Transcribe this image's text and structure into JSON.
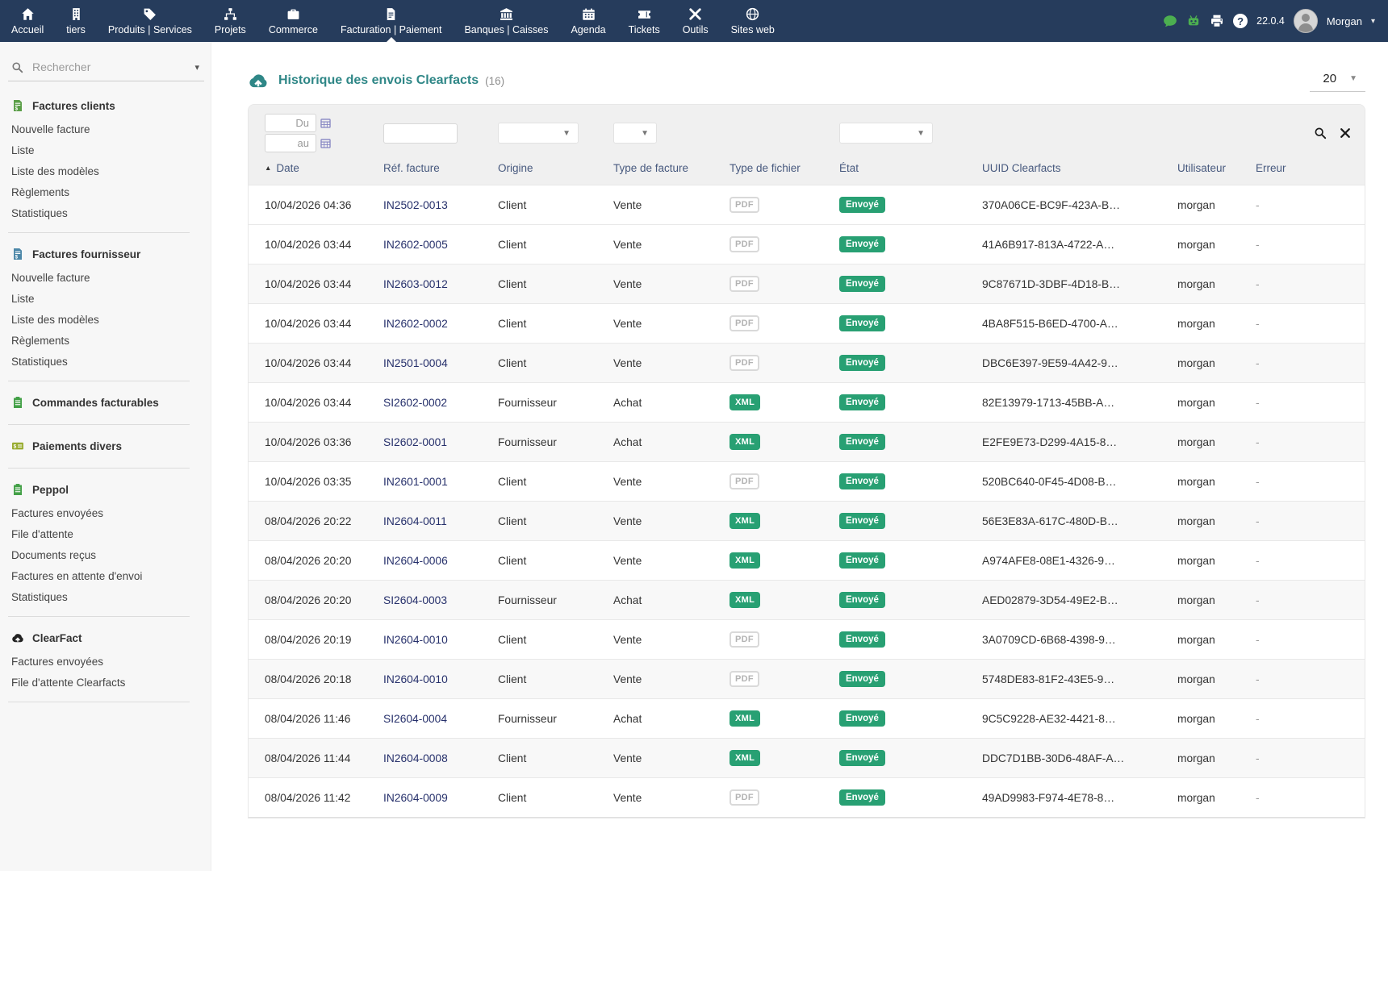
{
  "topnav": {
    "items": [
      {
        "label": "Accueil",
        "icon": "home",
        "active": false
      },
      {
        "label": "tiers",
        "icon": "building",
        "active": false
      },
      {
        "label": "Produits | Services",
        "icon": "tag",
        "active": false
      },
      {
        "label": "Projets",
        "icon": "sitemap",
        "active": false
      },
      {
        "label": "Commerce",
        "icon": "briefcase",
        "active": false
      },
      {
        "label": "Facturation | Paiement",
        "icon": "file-invoice",
        "active": true
      },
      {
        "label": "Banques | Caisses",
        "icon": "bank",
        "active": false
      },
      {
        "label": "Agenda",
        "icon": "calendar",
        "active": false
      },
      {
        "label": "Tickets",
        "icon": "ticket",
        "active": false
      },
      {
        "label": "Outils",
        "icon": "tools",
        "active": false
      },
      {
        "label": "Sites web",
        "icon": "globe",
        "active": false
      }
    ],
    "right": {
      "icons": [
        "comment",
        "robot",
        "printer",
        "help"
      ],
      "version": "22.0.4",
      "user": "Morgan"
    }
  },
  "sidebar": {
    "search_placeholder": "Rechercher",
    "sections": [
      {
        "title": "Factures clients",
        "icon": "file-dollar",
        "color": "#5b9e48",
        "items": [
          "Nouvelle facture",
          "Liste",
          "Liste des modèles",
          "Règlements",
          "Statistiques"
        ]
      },
      {
        "title": "Factures fournisseur",
        "icon": "file-dollar",
        "color": "#4c87a8",
        "items": [
          "Nouvelle facture",
          "Liste",
          "Liste des modèles",
          "Règlements",
          "Statistiques"
        ]
      },
      {
        "title": "Commandes facturables",
        "icon": "clipboard",
        "color": "#43a047",
        "items": []
      },
      {
        "title": "Paiements divers",
        "icon": "money",
        "color": "#9aad33",
        "items": []
      },
      {
        "title": "Peppol",
        "icon": "clipboard",
        "color": "#43a047",
        "items": [
          "Factures envoyées",
          "File d'attente",
          "Documents reçus",
          "Factures en attente d'envoi",
          "Statistiques"
        ]
      },
      {
        "title": "ClearFact",
        "icon": "cloud-upload",
        "color": "#222222",
        "items": [
          "Factures envoyées",
          "File d'attente Clearfacts"
        ]
      }
    ]
  },
  "main": {
    "title": "Historique des envois Clearfacts",
    "count": "(16)",
    "page_size": "20",
    "filters": {
      "date_from_placeholder": "Du",
      "date_to_placeholder": "au"
    },
    "table": {
      "columns": [
        "Date",
        "Réf. facture",
        "Origine",
        "Type de facture",
        "Type de fichier",
        "État",
        "UUID Clearfacts",
        "Utilisateur",
        "Erreur"
      ],
      "sorted_column": "Date",
      "rows": [
        {
          "date": "10/04/2026 04:36",
          "ref": "IN2502-0013",
          "origin": "Client",
          "invoice_type": "Vente",
          "file_type": "PDF",
          "status": "Envoyé",
          "uuid": "370A06CE-BC9F-423A-B…",
          "user": "morgan",
          "error": "-"
        },
        {
          "date": "10/04/2026 03:44",
          "ref": "IN2602-0005",
          "origin": "Client",
          "invoice_type": "Vente",
          "file_type": "PDF",
          "status": "Envoyé",
          "uuid": "41A6B917-813A-4722-A…",
          "user": "morgan",
          "error": "-"
        },
        {
          "date": "10/04/2026 03:44",
          "ref": "IN2603-0012",
          "origin": "Client",
          "invoice_type": "Vente",
          "file_type": "PDF",
          "status": "Envoyé",
          "uuid": "9C87671D-3DBF-4D18-B…",
          "user": "morgan",
          "error": "-"
        },
        {
          "date": "10/04/2026 03:44",
          "ref": "IN2602-0002",
          "origin": "Client",
          "invoice_type": "Vente",
          "file_type": "PDF",
          "status": "Envoyé",
          "uuid": "4BA8F515-B6ED-4700-A…",
          "user": "morgan",
          "error": "-"
        },
        {
          "date": "10/04/2026 03:44",
          "ref": "IN2501-0004",
          "origin": "Client",
          "invoice_type": "Vente",
          "file_type": "PDF",
          "status": "Envoyé",
          "uuid": "DBC6E397-9E59-4A42-9…",
          "user": "morgan",
          "error": "-"
        },
        {
          "date": "10/04/2026 03:44",
          "ref": "SI2602-0002",
          "origin": "Fournisseur",
          "invoice_type": "Achat",
          "file_type": "XML",
          "status": "Envoyé",
          "uuid": "82E13979-1713-45BB-A…",
          "user": "morgan",
          "error": "-"
        },
        {
          "date": "10/04/2026 03:36",
          "ref": "SI2602-0001",
          "origin": "Fournisseur",
          "invoice_type": "Achat",
          "file_type": "XML",
          "status": "Envoyé",
          "uuid": "E2FE9E73-D299-4A15-8…",
          "user": "morgan",
          "error": "-"
        },
        {
          "date": "10/04/2026 03:35",
          "ref": "IN2601-0001",
          "origin": "Client",
          "invoice_type": "Vente",
          "file_type": "PDF",
          "status": "Envoyé",
          "uuid": "520BC640-0F45-4D08-B…",
          "user": "morgan",
          "error": "-"
        },
        {
          "date": "08/04/2026 20:22",
          "ref": "IN2604-0011",
          "origin": "Client",
          "invoice_type": "Vente",
          "file_type": "XML",
          "status": "Envoyé",
          "uuid": "56E3E83A-617C-480D-B…",
          "user": "morgan",
          "error": "-"
        },
        {
          "date": "08/04/2026 20:20",
          "ref": "IN2604-0006",
          "origin": "Client",
          "invoice_type": "Vente",
          "file_type": "XML",
          "status": "Envoyé",
          "uuid": "A974AFE8-08E1-4326-9…",
          "user": "morgan",
          "error": "-"
        },
        {
          "date": "08/04/2026 20:20",
          "ref": "SI2604-0003",
          "origin": "Fournisseur",
          "invoice_type": "Achat",
          "file_type": "XML",
          "status": "Envoyé",
          "uuid": "AED02879-3D54-49E2-B…",
          "user": "morgan",
          "error": "-"
        },
        {
          "date": "08/04/2026 20:19",
          "ref": "IN2604-0010",
          "origin": "Client",
          "invoice_type": "Vente",
          "file_type": "PDF",
          "status": "Envoyé",
          "uuid": "3A0709CD-6B68-4398-9…",
          "user": "morgan",
          "error": "-"
        },
        {
          "date": "08/04/2026 20:18",
          "ref": "IN2604-0010",
          "origin": "Client",
          "invoice_type": "Vente",
          "file_type": "PDF",
          "status": "Envoyé",
          "uuid": "5748DE83-81F2-43E5-9…",
          "user": "morgan",
          "error": "-"
        },
        {
          "date": "08/04/2026 11:46",
          "ref": "SI2604-0004",
          "origin": "Fournisseur",
          "invoice_type": "Achat",
          "file_type": "XML",
          "status": "Envoyé",
          "uuid": "9C5C9228-AE32-4421-8…",
          "user": "morgan",
          "error": "-"
        },
        {
          "date": "08/04/2026 11:44",
          "ref": "IN2604-0008",
          "origin": "Client",
          "invoice_type": "Vente",
          "file_type": "XML",
          "status": "Envoyé",
          "uuid": "DDC7D1BB-30D6-48AF-A…",
          "user": "morgan",
          "error": "-"
        },
        {
          "date": "08/04/2026 11:42",
          "ref": "IN2604-0009",
          "origin": "Client",
          "invoice_type": "Vente",
          "file_type": "PDF",
          "status": "Envoyé",
          "uuid": "49AD9983-F974-4E78-8…",
          "user": "morgan",
          "error": "-"
        }
      ]
    }
  },
  "colors": {
    "navbar": "#263c5c",
    "accent_teal": "#2f8787",
    "badge_green": "#28a073",
    "link": "#26306b",
    "header_text": "#47597e"
  }
}
